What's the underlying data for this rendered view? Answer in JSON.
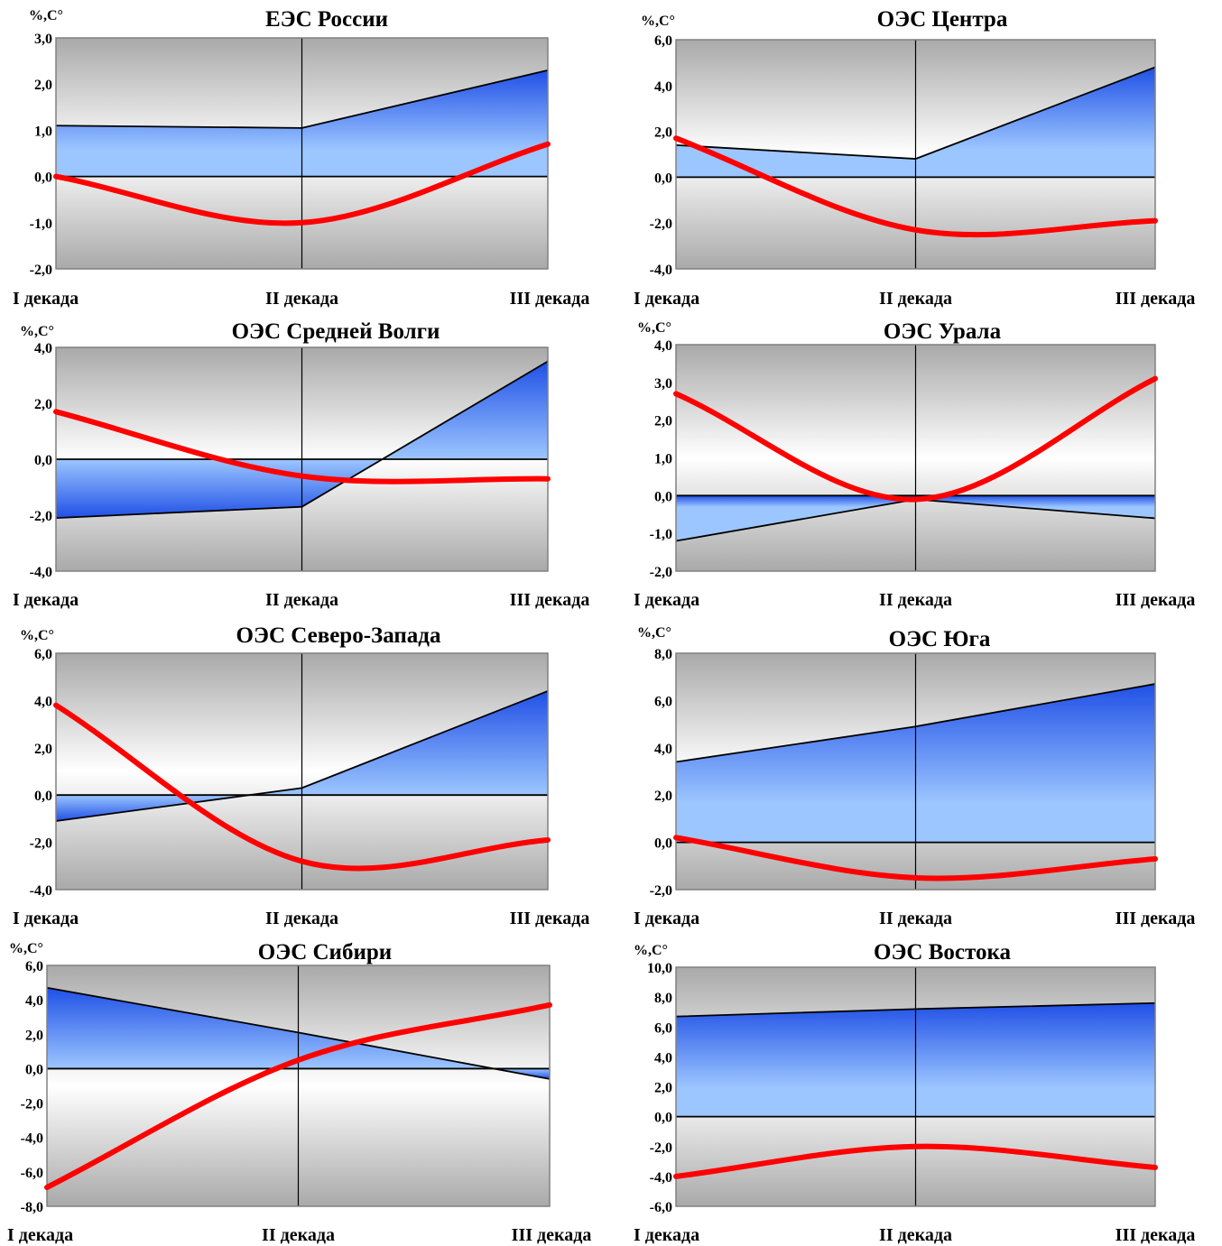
{
  "chart_data": [
    {
      "type": "area",
      "title": "ЕЭС России",
      "ylabel": "%,C°",
      "categories": [
        "I декада",
        "II декада",
        "III декада"
      ],
      "ylim": [
        -2,
        3
      ],
      "yticks": [
        "-2,0",
        "-1,0",
        "0,0",
        "1,0",
        "2,0",
        "3,0"
      ],
      "series": [
        {
          "kind": "area",
          "values": [
            1.1,
            1.05,
            2.3
          ]
        },
        {
          "kind": "smooth-line",
          "values": [
            0.0,
            -1.0,
            0.7
          ]
        }
      ]
    },
    {
      "type": "area",
      "title": "ОЭС Центра",
      "ylabel": "%,C°",
      "categories": [
        "I декада",
        "II декада",
        "III декада"
      ],
      "ylim": [
        -4,
        6
      ],
      "yticks": [
        "-4,0",
        "-2,0",
        "0,0",
        "2,0",
        "4,0",
        "6,0"
      ],
      "series": [
        {
          "kind": "area",
          "values": [
            1.4,
            0.8,
            4.8
          ]
        },
        {
          "kind": "smooth-line",
          "values": [
            1.7,
            -2.3,
            -1.9
          ]
        }
      ]
    },
    {
      "type": "area",
      "title": "ОЭС Средней Волги",
      "ylabel": "%,C°",
      "categories": [
        "I декада",
        "II декада",
        "III декада"
      ],
      "ylim": [
        -4,
        4
      ],
      "yticks": [
        "-4,0",
        "-2,0",
        "0,0",
        "2,0",
        "4,0"
      ],
      "series": [
        {
          "kind": "area",
          "values": [
            -2.1,
            -1.7,
            3.5
          ]
        },
        {
          "kind": "smooth-line",
          "values": [
            1.7,
            -0.6,
            -0.7
          ]
        }
      ]
    },
    {
      "type": "area",
      "title": "ОЭС Урала",
      "ylabel": "%,C°",
      "categories": [
        "I декада",
        "II декада",
        "III декада"
      ],
      "ylim": [
        -2,
        4
      ],
      "yticks": [
        "-2,0",
        "-1,0",
        "0,0",
        "1,0",
        "2,0",
        "3,0",
        "4,0"
      ],
      "series": [
        {
          "kind": "area",
          "values": [
            -1.2,
            -0.1,
            -0.6
          ]
        },
        {
          "kind": "smooth-line",
          "values": [
            2.7,
            -0.1,
            3.1
          ]
        }
      ]
    },
    {
      "type": "area",
      "title": "ОЭС Северо-Запада",
      "ylabel": "%,C°",
      "categories": [
        "I декада",
        "II декада",
        "III декада"
      ],
      "ylim": [
        -4,
        6
      ],
      "yticks": [
        "-4,0",
        "-2,0",
        "0,0",
        "2,0",
        "4,0",
        "6,0"
      ],
      "series": [
        {
          "kind": "area",
          "values": [
            -1.1,
            0.3,
            4.4
          ]
        },
        {
          "kind": "smooth-line",
          "values": [
            3.8,
            -2.8,
            -1.9
          ]
        }
      ]
    },
    {
      "type": "area",
      "title": "ОЭС Юга",
      "ylabel": "%,C°",
      "categories": [
        "I декада",
        "II декада",
        "III декада"
      ],
      "ylim": [
        -2,
        8
      ],
      "yticks": [
        "-2,0",
        "0,0",
        "2,0",
        "4,0",
        "6,0",
        "8,0"
      ],
      "series": [
        {
          "kind": "area",
          "values": [
            3.4,
            4.9,
            6.7
          ]
        },
        {
          "kind": "smooth-line",
          "values": [
            0.2,
            -1.5,
            -0.7
          ]
        }
      ]
    },
    {
      "type": "area",
      "title": "ОЭС Сибири",
      "ylabel": "%,C°",
      "categories": [
        "I декада",
        "II декада",
        "III декада"
      ],
      "ylim": [
        -8,
        6
      ],
      "yticks": [
        "-8,0",
        "-6,0",
        "-4,0",
        "-2,0",
        "0,0",
        "2,0",
        "4,0",
        "6,0"
      ],
      "series": [
        {
          "kind": "area",
          "values": [
            4.7,
            2.1,
            -0.6
          ]
        },
        {
          "kind": "smooth-line",
          "values": [
            -6.9,
            0.5,
            3.7
          ]
        }
      ]
    },
    {
      "type": "area",
      "title": "ОЭС Востока",
      "ylabel": "%,C°",
      "categories": [
        "I декада",
        "II декада",
        "III декада"
      ],
      "ylim": [
        -6,
        10
      ],
      "yticks": [
        "-6,0",
        "-4,0",
        "-2,0",
        "0,0",
        "2,0",
        "4,0",
        "6,0",
        "8,0",
        "10,0"
      ],
      "series": [
        {
          "kind": "area",
          "values": [
            6.7,
            7.2,
            7.6
          ]
        },
        {
          "kind": "smooth-line",
          "values": [
            -4.0,
            -2.0,
            -3.4
          ]
        }
      ]
    }
  ],
  "colors": {
    "area_top": "#2050e6",
    "area_bottom": "#9cc6ff",
    "line": "#ff0000",
    "plot_shade": "#a9a9a9",
    "plot_light": "#ffffff",
    "frame": "#808080"
  }
}
